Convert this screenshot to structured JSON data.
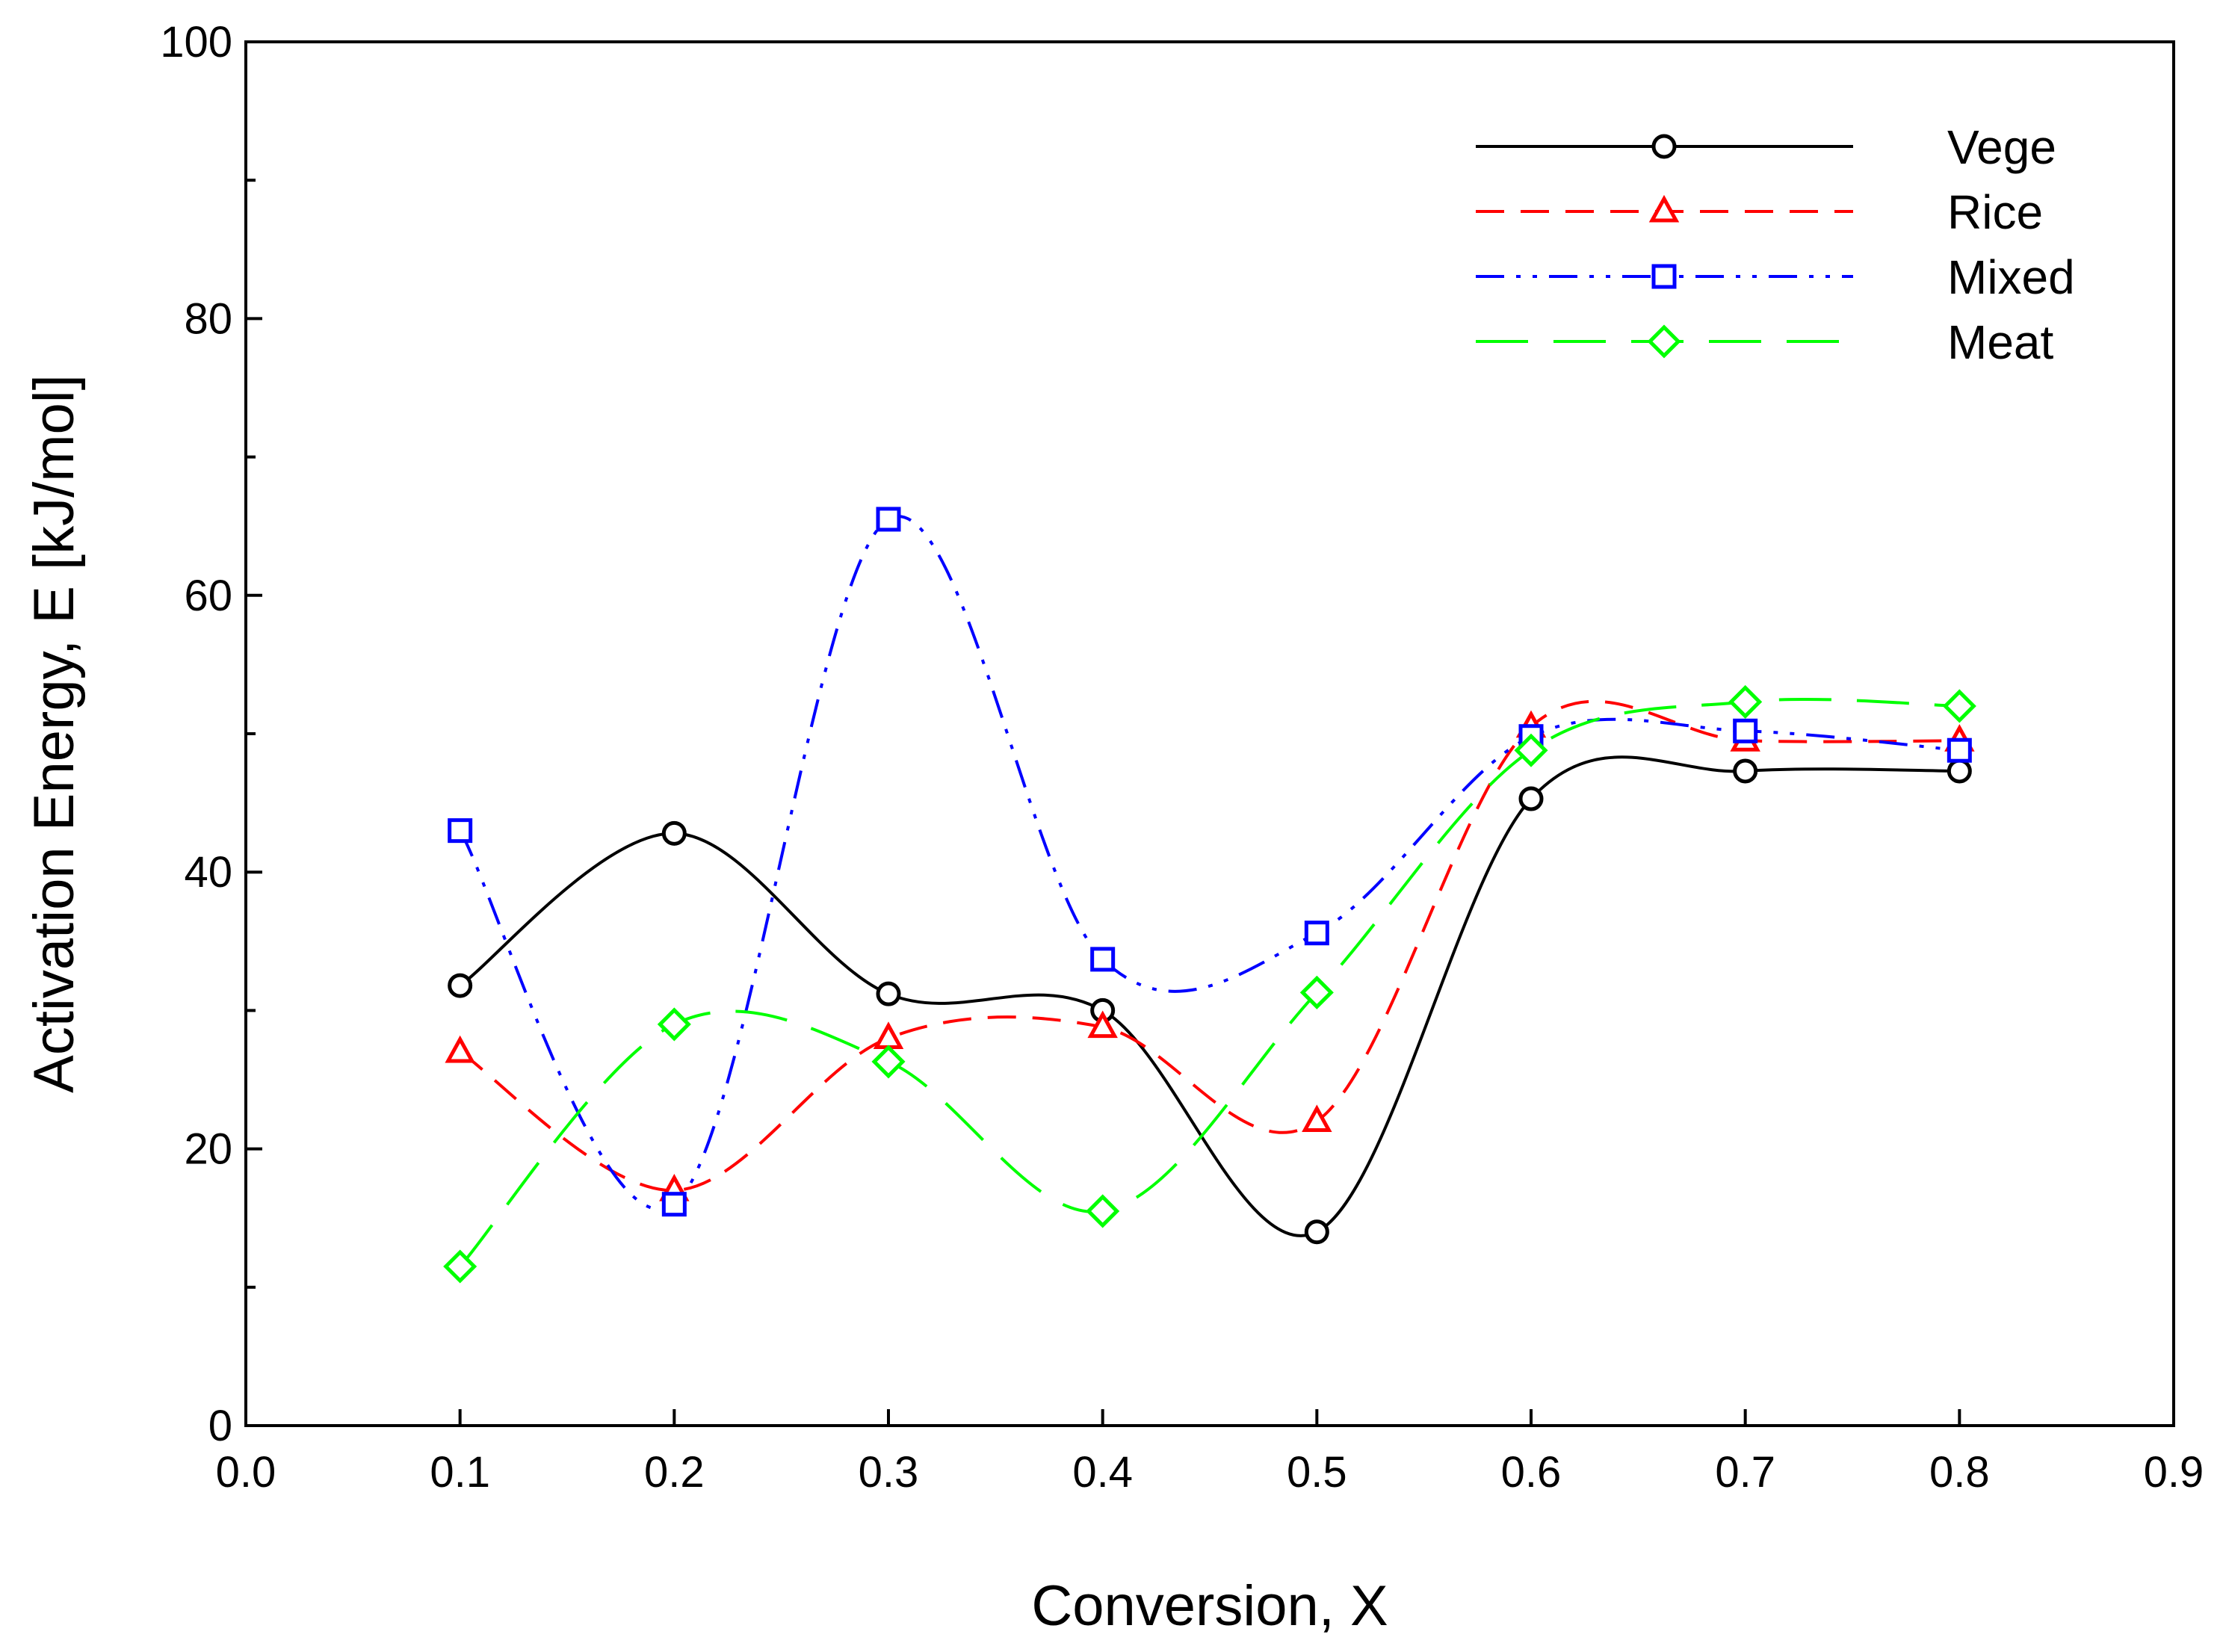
{
  "chart_data": {
    "type": "line",
    "title": "",
    "xlabel": "Conversion, X",
    "ylabel": "Activation Energy, E [kJ/mol]",
    "xlim": [
      0.0,
      0.9
    ],
    "ylim": [
      0,
      100
    ],
    "xticks": [
      "0.0",
      "0.1",
      "0.2",
      "0.3",
      "0.4",
      "0.5",
      "0.6",
      "0.7",
      "0.8",
      "0.9"
    ],
    "yticks": [
      "0",
      "20",
      "40",
      "60",
      "80",
      "100"
    ],
    "grid": false,
    "legend_position": "top-right",
    "x": [
      0.1,
      0.2,
      0.3,
      0.4,
      0.5,
      0.6,
      0.7,
      0.8
    ],
    "series": [
      {
        "name": "Vege",
        "color": "#000000",
        "marker": "circle",
        "line_style": "solid",
        "values": [
          31.8,
          42.8,
          31.2,
          30.0,
          14.0,
          45.3,
          47.3,
          47.3
        ]
      },
      {
        "name": "Rice",
        "color": "#ff0000",
        "marker": "triangle",
        "line_style": "dashed",
        "values": [
          27.0,
          17.0,
          28.0,
          28.8,
          22.0,
          50.5,
          49.5,
          49.5
        ]
      },
      {
        "name": "Mixed",
        "color": "#0000ff",
        "marker": "square",
        "line_style": "dash-dot-dot",
        "values": [
          43.0,
          16.0,
          65.5,
          33.7,
          35.6,
          49.8,
          50.2,
          48.8
        ]
      },
      {
        "name": "Meat",
        "color": "#00ff00",
        "marker": "diamond",
        "line_style": "long-dash",
        "values": [
          11.5,
          29.0,
          26.3,
          15.5,
          31.3,
          48.8,
          52.3,
          52.0
        ]
      }
    ]
  }
}
